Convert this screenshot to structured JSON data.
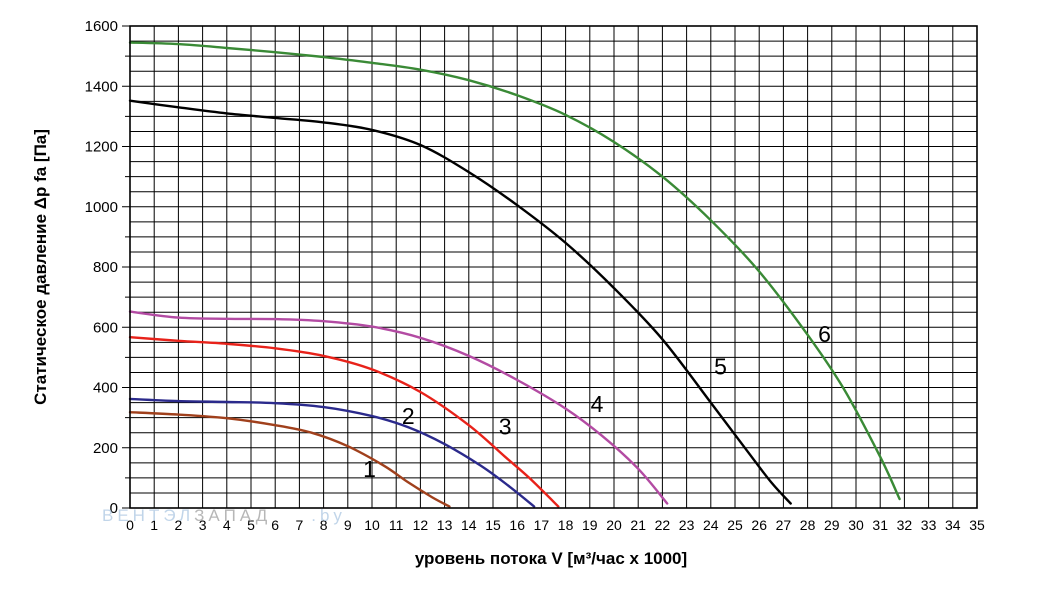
{
  "chart_data": {
    "type": "line",
    "xlabel": "уровень потока  V [м³/час x 1000]",
    "ylabel": "Статическое давление  Δp fa [Па]",
    "xlim": [
      0,
      35
    ],
    "ylim": [
      0,
      1600
    ],
    "x_ticks": [
      "0",
      "1",
      "2",
      "3",
      "4",
      "5",
      "6",
      "7",
      "8",
      "9",
      "10",
      "11",
      "12",
      "13",
      "14",
      "15",
      "16",
      "17",
      "18",
      "19",
      "20",
      "21",
      "22",
      "23",
      "24",
      "25",
      "26",
      "27",
      "28",
      "29",
      "30",
      "31",
      "32",
      "33",
      "34",
      "35"
    ],
    "y_ticks": [
      "0",
      "200",
      "400",
      "600",
      "800",
      "1000",
      "1200",
      "1400",
      "1600"
    ],
    "grid": true,
    "series": [
      {
        "name": "1",
        "color": "#a0401c",
        "x": [
          0,
          2,
          4,
          6,
          7.5,
          9,
          10.5,
          11.5,
          12.5,
          13.2
        ],
        "y": [
          318,
          310,
          298,
          275,
          250,
          205,
          140,
          85,
          35,
          5
        ]
      },
      {
        "name": "2",
        "color": "#2b2a8c",
        "x": [
          0,
          2,
          4,
          6,
          8,
          10,
          11.5,
          13,
          14.5,
          15.7,
          16.7
        ],
        "y": [
          362,
          355,
          352,
          348,
          335,
          305,
          268,
          212,
          140,
          70,
          5
        ]
      },
      {
        "name": "3",
        "color": "#e8221a",
        "x": [
          0,
          2,
          4,
          6,
          8,
          10,
          12,
          14,
          15.5,
          16.5,
          17.7
        ],
        "y": [
          567,
          555,
          545,
          530,
          505,
          460,
          385,
          275,
          170,
          100,
          5
        ]
      },
      {
        "name": "4",
        "color": "#b34ba3",
        "x": [
          0,
          2,
          4,
          6,
          8,
          10,
          12,
          14,
          16,
          18,
          19.5,
          21,
          22.2
        ],
        "y": [
          652,
          632,
          628,
          627,
          620,
          602,
          565,
          505,
          425,
          330,
          240,
          130,
          15
        ]
      },
      {
        "name": "5",
        "color": "#000000",
        "x": [
          0,
          2,
          4,
          6,
          8,
          10,
          12,
          14,
          16,
          18,
          20,
          22,
          24,
          25.5,
          26.5,
          27.3
        ],
        "y": [
          1352,
          1330,
          1310,
          1295,
          1280,
          1255,
          1205,
          1115,
          1005,
          880,
          730,
          560,
          350,
          190,
          85,
          15
        ]
      },
      {
        "name": "6",
        "color": "#3a8a36",
        "x": [
          0,
          2,
          4,
          6,
          8,
          10,
          12,
          14,
          16,
          18,
          20,
          22,
          24,
          26,
          28,
          29.5,
          31,
          31.8
        ],
        "y": [
          1545,
          1540,
          1527,
          1513,
          1497,
          1478,
          1455,
          1420,
          1370,
          1305,
          1215,
          1100,
          955,
          785,
          575,
          395,
          170,
          30
        ]
      }
    ],
    "annotations": [
      {
        "text": "1",
        "x": 9.9,
        "y": 130
      },
      {
        "text": "2",
        "x": 11.5,
        "y": 305
      },
      {
        "text": "3",
        "x": 15.5,
        "y": 270
      },
      {
        "text": "4",
        "x": 19.3,
        "y": 345
      },
      {
        "text": "5",
        "x": 24.4,
        "y": 470
      },
      {
        "text": "6",
        "x": 28.7,
        "y": 578
      }
    ]
  },
  "watermark": {
    "part1": "ВЕНТЭЛ",
    "part1_color": "#a8c4e0",
    "part2": "ЗАПАД",
    "part2_color": "#9a9a9a",
    "part3": ".by",
    "part3_color": "#a8c4e0"
  }
}
